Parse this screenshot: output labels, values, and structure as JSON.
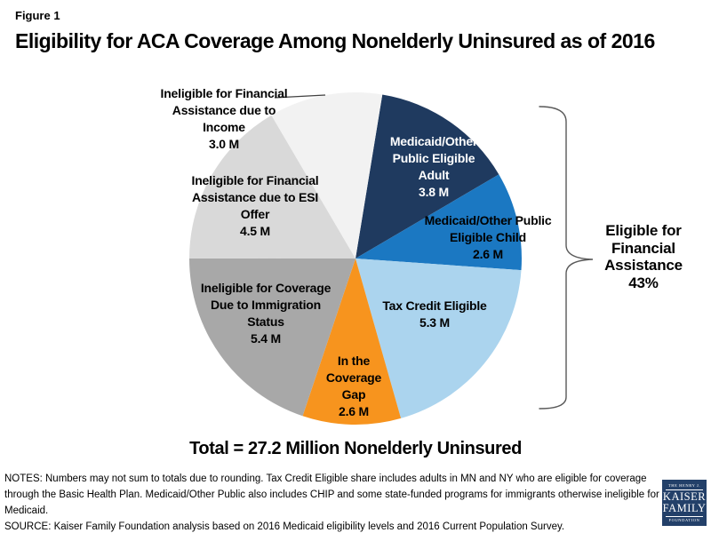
{
  "figure_label": "Figure 1",
  "title": "Eligibility for ACA Coverage Among Nonelderly Uninsured as of 2016",
  "chart_data": {
    "type": "pie",
    "title": "Eligibility for ACA Coverage Among Nonelderly Uninsured as of 2016",
    "units": "millions of people",
    "total_millions": 27.2,
    "total_label": "Total = 27.2 Million Nonelderly Uninsured",
    "start_angle_deg": 9.3,
    "slices": [
      {
        "id": "medicaid-adult",
        "name": "Medicaid/Other Public Eligible Adult",
        "value": 3.8,
        "label_lines": [
          "Medicaid/Other",
          "Public Eligible",
          "Adult",
          "3.8 M"
        ],
        "color": "#1f3a5f",
        "text_color": "#ffffff"
      },
      {
        "id": "medicaid-child",
        "name": "Medicaid/Other Public Eligible Child",
        "value": 2.6,
        "label_lines": [
          "Medicaid/Other Public",
          "Eligible Child",
          "2.6 M"
        ],
        "color": "#1b78c2",
        "text_color": "#000000"
      },
      {
        "id": "tax-credit-eligible",
        "name": "Tax Credit Eligible",
        "value": 5.3,
        "label_lines": [
          "Tax Credit Eligible",
          "5.3 M"
        ],
        "color": "#abd4ee",
        "text_color": "#000000"
      },
      {
        "id": "coverage-gap",
        "name": "In the Coverage Gap",
        "value": 2.6,
        "label_lines": [
          "In the",
          "Coverage",
          "Gap",
          "2.6 M"
        ],
        "color": "#f7941e",
        "text_color": "#000000"
      },
      {
        "id": "immigration-status",
        "name": "Ineligible for Coverage Due to Immigration Status",
        "value": 5.4,
        "label_lines": [
          "Ineligible for Coverage",
          "Due to Immigration",
          "Status",
          "5.4 M"
        ],
        "color": "#a8a8a8",
        "text_color": "#000000"
      },
      {
        "id": "esi-offer",
        "name": "Ineligible for Financial Assistance due to ESI Offer",
        "value": 4.5,
        "label_lines": [
          "Ineligible for Financial",
          "Assistance due to ESI",
          "Offer",
          "4.5 M"
        ],
        "color": "#d9d9d9",
        "text_color": "#000000"
      },
      {
        "id": "income",
        "name": "Ineligible for Financial Assistance due to Income",
        "value": 3.0,
        "label_lines": [
          "Ineligible for Financial",
          "Assistance due to",
          "Income",
          "3.0 M"
        ],
        "color": "#f2f2f2",
        "text_color": "#000000"
      }
    ],
    "annotation": {
      "text": "Eligible for Financial Assistance 43%",
      "percent": "43%",
      "lines": [
        "Eligible for",
        "Financial",
        "Assistance",
        "43%"
      ]
    }
  },
  "total_label": "Total = 27.2 Million Nonelderly Uninsured",
  "notes": "NOTES: Numbers may not sum to totals due to rounding.  Tax Credit Eligible share includes adults in MN and NY who are eligible for coverage through the Basic Health Plan. Medicaid/Other Public also includes CHIP and some state-funded programs for immigrants otherwise ineligible for Medicaid.",
  "source": "SOURCE: Kaiser Family Foundation analysis based on 2016 Medicaid eligibility levels and 2016 Current Population Survey.",
  "logo": {
    "line1": "THE HENRY J.",
    "line2": "KAISER",
    "line3": "FAMILY",
    "line4": "FOUNDATION"
  }
}
